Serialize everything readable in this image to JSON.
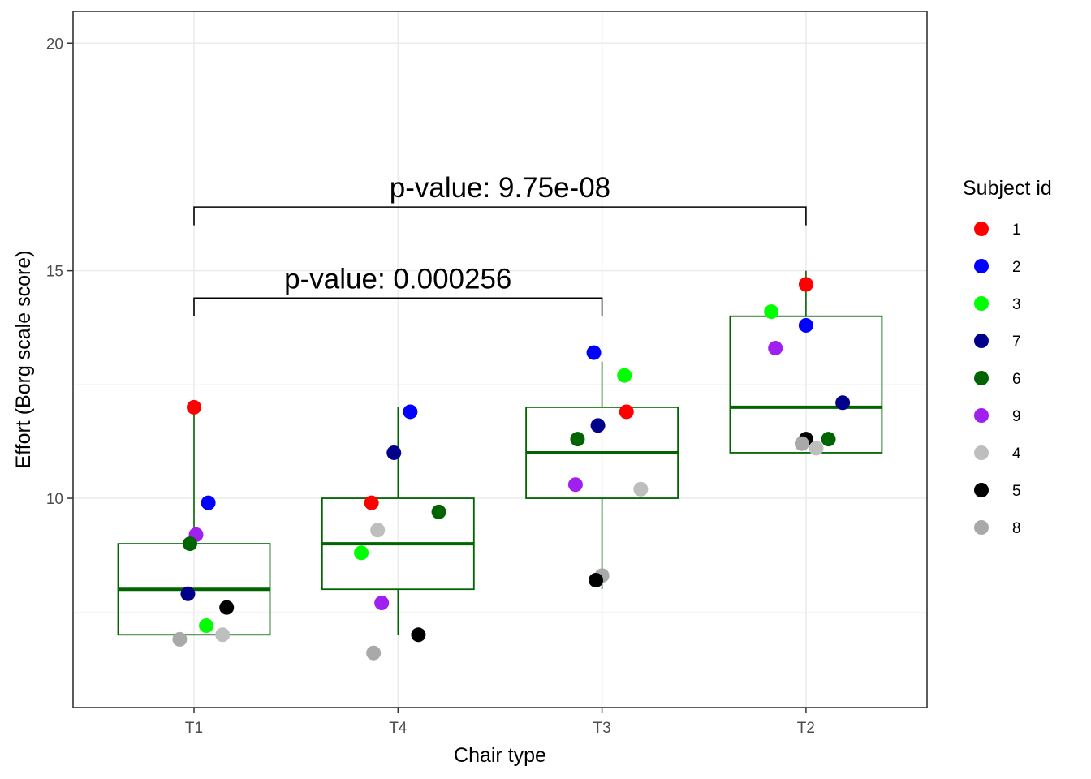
{
  "chart_data": {
    "type": "box",
    "xlabel": "Chair type",
    "ylabel": "Effort (Borg scale score)",
    "ylim": [
      5.4,
      20.7
    ],
    "yticks": [
      10,
      15,
      20
    ],
    "yminor": [
      7.5,
      12.5,
      17.5
    ],
    "grid": true,
    "categories": [
      "T1",
      "T4",
      "T3",
      "T2"
    ],
    "box_color": "#006400",
    "boxes": [
      {
        "category": "T1",
        "min": 7,
        "q1": 7,
        "median": 8,
        "q3": 9,
        "max": 12
      },
      {
        "category": "T4",
        "min": 7,
        "q1": 8,
        "median": 9,
        "q3": 10,
        "max": 12
      },
      {
        "category": "T3",
        "min": 8,
        "q1": 10,
        "median": 11,
        "q3": 12,
        "max": 13
      },
      {
        "category": "T2",
        "min": 11,
        "q1": 11,
        "median": 12,
        "q3": 14,
        "max": 15
      }
    ],
    "legend": {
      "title": "Subject id",
      "position": "right",
      "entries": [
        {
          "id": "1",
          "color": "#ff0000"
        },
        {
          "id": "2",
          "color": "#0000ff"
        },
        {
          "id": "3",
          "color": "#00ff00"
        },
        {
          "id": "7",
          "color": "#00008b"
        },
        {
          "id": "6",
          "color": "#006400"
        },
        {
          "id": "9",
          "color": "#a020f0"
        },
        {
          "id": "4",
          "color": "#bebebe"
        },
        {
          "id": "5",
          "color": "#000000"
        },
        {
          "id": "8",
          "color": "#a9a9a9"
        }
      ]
    },
    "points": [
      {
        "category": "T1",
        "subject": "1",
        "x": 1.0,
        "y": 12.0
      },
      {
        "category": "T1",
        "subject": "2",
        "x": 1.07,
        "y": 9.9
      },
      {
        "category": "T1",
        "subject": "9",
        "x": 1.01,
        "y": 9.2
      },
      {
        "category": "T1",
        "subject": "6",
        "x": 0.98,
        "y": 9.0
      },
      {
        "category": "T1",
        "subject": "7",
        "x": 0.97,
        "y": 7.9
      },
      {
        "category": "T1",
        "subject": "5",
        "x": 1.16,
        "y": 7.6
      },
      {
        "category": "T1",
        "subject": "3",
        "x": 1.06,
        "y": 7.2
      },
      {
        "category": "T1",
        "subject": "4",
        "x": 1.14,
        "y": 7.0
      },
      {
        "category": "T1",
        "subject": "8",
        "x": 0.93,
        "y": 6.9
      },
      {
        "category": "T4",
        "subject": "2",
        "x": 2.06,
        "y": 11.9
      },
      {
        "category": "T4",
        "subject": "7",
        "x": 1.98,
        "y": 11.0
      },
      {
        "category": "T4",
        "subject": "1",
        "x": 1.87,
        "y": 9.9
      },
      {
        "category": "T4",
        "subject": "6",
        "x": 2.2,
        "y": 9.7
      },
      {
        "category": "T4",
        "subject": "4",
        "x": 1.9,
        "y": 9.3
      },
      {
        "category": "T4",
        "subject": "3",
        "x": 1.82,
        "y": 8.8
      },
      {
        "category": "T4",
        "subject": "9",
        "x": 1.92,
        "y": 7.7
      },
      {
        "category": "T4",
        "subject": "5",
        "x": 2.1,
        "y": 7.0
      },
      {
        "category": "T4",
        "subject": "8",
        "x": 1.88,
        "y": 6.6
      },
      {
        "category": "T3",
        "subject": "2",
        "x": 2.96,
        "y": 13.2
      },
      {
        "category": "T3",
        "subject": "3",
        "x": 3.11,
        "y": 12.7
      },
      {
        "category": "T3",
        "subject": "1",
        "x": 3.12,
        "y": 11.9
      },
      {
        "category": "T3",
        "subject": "7",
        "x": 2.98,
        "y": 11.6
      },
      {
        "category": "T3",
        "subject": "6",
        "x": 2.88,
        "y": 11.3
      },
      {
        "category": "T3",
        "subject": "9",
        "x": 2.87,
        "y": 10.3
      },
      {
        "category": "T3",
        "subject": "4",
        "x": 3.19,
        "y": 10.2
      },
      {
        "category": "T3",
        "subject": "8",
        "x": 3.0,
        "y": 8.3
      },
      {
        "category": "T3",
        "subject": "5",
        "x": 2.97,
        "y": 8.2
      },
      {
        "category": "T2",
        "subject": "1",
        "x": 4.0,
        "y": 14.7
      },
      {
        "category": "T2",
        "subject": "3",
        "x": 3.83,
        "y": 14.1
      },
      {
        "category": "T2",
        "subject": "2",
        "x": 4.0,
        "y": 13.8
      },
      {
        "category": "T2",
        "subject": "9",
        "x": 3.85,
        "y": 13.3
      },
      {
        "category": "T2",
        "subject": "7",
        "x": 4.18,
        "y": 12.1
      },
      {
        "category": "T2",
        "subject": "5",
        "x": 4.0,
        "y": 11.3
      },
      {
        "category": "T2",
        "subject": "6",
        "x": 4.11,
        "y": 11.3
      },
      {
        "category": "T2",
        "subject": "8",
        "x": 3.98,
        "y": 11.2
      },
      {
        "category": "T2",
        "subject": "4",
        "x": 4.05,
        "y": 11.1
      }
    ],
    "annotations": [
      {
        "from": "T1",
        "to": "T3",
        "y": 14.0,
        "top": 14.4,
        "text": "p-value: 0.000256"
      },
      {
        "from": "T1",
        "to": "T2",
        "y": 16.0,
        "top": 16.4,
        "text": "p-value: 9.75e-08"
      }
    ]
  }
}
